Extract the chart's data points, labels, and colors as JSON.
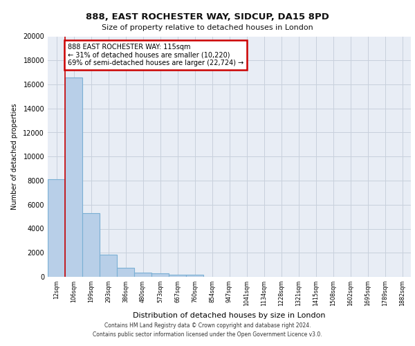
{
  "title1": "888, EAST ROCHESTER WAY, SIDCUP, DA15 8PD",
  "title2": "Size of property relative to detached houses in London",
  "xlabel": "Distribution of detached houses by size in London",
  "ylabel": "Number of detached properties",
  "categories": [
    "12sqm",
    "106sqm",
    "199sqm",
    "293sqm",
    "386sqm",
    "480sqm",
    "573sqm",
    "667sqm",
    "760sqm",
    "854sqm",
    "947sqm",
    "1041sqm",
    "1134sqm",
    "1228sqm",
    "1321sqm",
    "1415sqm",
    "1508sqm",
    "1602sqm",
    "1695sqm",
    "1789sqm",
    "1882sqm"
  ],
  "values": [
    8100,
    16600,
    5300,
    1850,
    750,
    340,
    260,
    200,
    150,
    0,
    0,
    0,
    0,
    0,
    0,
    0,
    0,
    0,
    0,
    0,
    0
  ],
  "bar_color": "#b8cfe8",
  "bar_edge_color": "#7aafd4",
  "vline_color": "#cc0000",
  "annotation_text": "888 EAST ROCHESTER WAY: 115sqm\n← 31% of detached houses are smaller (10,220)\n69% of semi-detached houses are larger (22,724) →",
  "annotation_box_color": "#cc0000",
  "ylim": [
    0,
    20000
  ],
  "yticks": [
    0,
    2000,
    4000,
    6000,
    8000,
    10000,
    12000,
    14000,
    16000,
    18000,
    20000
  ],
  "grid_color": "#c8d0dc",
  "bg_color": "#e8edf5",
  "footer_line1": "Contains HM Land Registry data © Crown copyright and database right 2024.",
  "footer_line2": "Contains public sector information licensed under the Open Government Licence v3.0."
}
